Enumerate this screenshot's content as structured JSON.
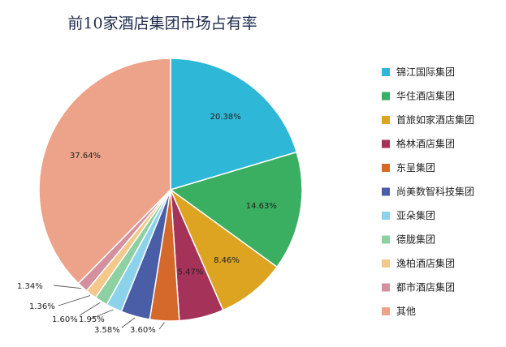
{
  "chart_data": {
    "type": "pie",
    "title": "前10家酒店集团市场占有率",
    "legend_position": "right",
    "series": [
      {
        "name": "锦江国际集团",
        "value": 20.38,
        "label": "20.38%",
        "color": "#2fb7d8"
      },
      {
        "name": "华住酒店集团",
        "value": 14.63,
        "label": "14.63%",
        "color": "#3aae61"
      },
      {
        "name": "首旅如家酒店集团",
        "value": 8.46,
        "label": "8.46%",
        "color": "#dca421"
      },
      {
        "name": "格林酒店集团",
        "value": 5.47,
        "label": "5.47%",
        "color": "#a53259"
      },
      {
        "name": "东呈集团",
        "value": 3.6,
        "label": "3.60%",
        "color": "#d4692b"
      },
      {
        "name": "尚美数智科技集团",
        "value": 3.58,
        "label": "3.58%",
        "color": "#4a5ea8"
      },
      {
        "name": "亚朵集团",
        "value": 1.95,
        "label": "1.95%",
        "color": "#8cd2ea"
      },
      {
        "name": "德胧集团",
        "value": 1.6,
        "label": "1.60%",
        "color": "#8dd0a2"
      },
      {
        "name": "逸柏酒店集团",
        "value": 1.36,
        "label": "1.36%",
        "color": "#f2c98a"
      },
      {
        "name": "都市酒店集团",
        "value": 1.34,
        "label": "1.34%",
        "color": "#d4909f"
      },
      {
        "name": "其他",
        "value": 37.64,
        "label": "37.64%",
        "color": "#eda38a"
      }
    ]
  }
}
